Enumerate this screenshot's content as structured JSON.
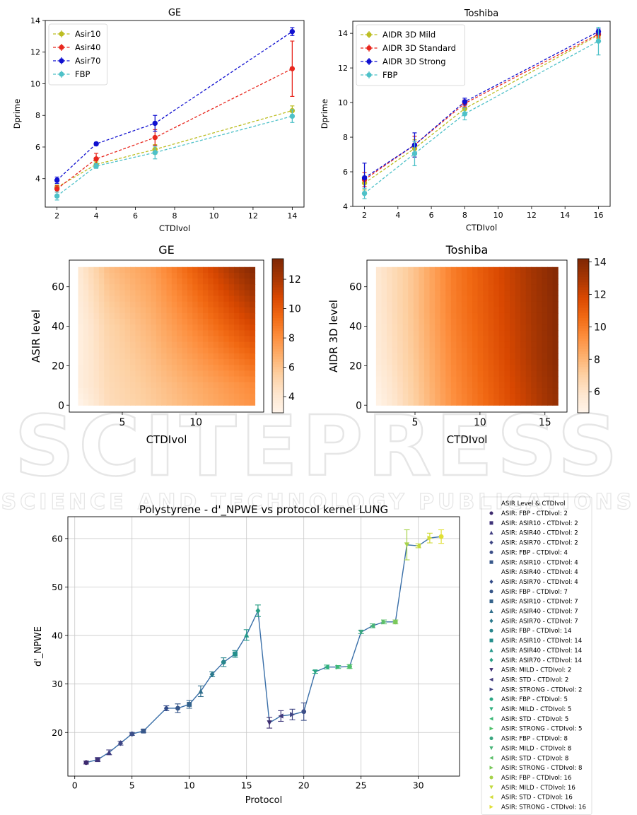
{
  "chart_data": [
    {
      "id": "ge_line",
      "type": "line",
      "title": "GE",
      "xlabel": "CTDIvol",
      "ylabel": "Dprime",
      "xlim": [
        1.4,
        14.6
      ],
      "ylim": [
        2.2,
        14.0
      ],
      "xticks": [
        2,
        4,
        6,
        8,
        10,
        12,
        14
      ],
      "yticks": [
        4,
        6,
        8,
        10,
        12,
        14
      ],
      "legend_position": "top-left",
      "x": [
        2,
        4,
        7,
        14
      ],
      "series": [
        {
          "name": "Asir10",
          "color": "#bcbd22",
          "values": [
            3.45,
            4.9,
            5.85,
            8.3
          ],
          "errors": [
            0.15,
            0.2,
            0.3,
            0.3
          ]
        },
        {
          "name": "Asir40",
          "color": "#e8271e",
          "values": [
            3.35,
            5.25,
            6.6,
            10.95
          ],
          "errors": [
            0.2,
            0.35,
            0.5,
            1.75
          ]
        },
        {
          "name": "Asir70",
          "color": "#1010d0",
          "values": [
            3.9,
            6.2,
            7.5,
            13.3
          ],
          "errors": [
            0.2,
            0.1,
            0.5,
            0.25
          ]
        },
        {
          "name": "FBP",
          "color": "#4ec1c8",
          "values": [
            2.9,
            4.8,
            5.65,
            7.95
          ],
          "errors": [
            0.25,
            0.15,
            0.4,
            0.4
          ]
        }
      ]
    },
    {
      "id": "toshiba_line",
      "type": "line",
      "title": "Toshiba",
      "xlabel": "CTDIvol",
      "ylabel": "Dprime",
      "xlim": [
        1.3,
        16.7
      ],
      "ylim": [
        4.0,
        14.7
      ],
      "xticks": [
        2,
        4,
        6,
        8,
        10,
        12,
        14,
        16
      ],
      "yticks": [
        4,
        6,
        8,
        10,
        12,
        14
      ],
      "legend_position": "top-left",
      "x": [
        2,
        5,
        8,
        16
      ],
      "series": [
        {
          "name": "AIDR 3D Mild",
          "color": "#bcbd22",
          "values": [
            5.35,
            7.35,
            9.65,
            13.9
          ],
          "errors": [
            0.4,
            0.5,
            0.3,
            0.2
          ]
        },
        {
          "name": "AIDR 3D Standard",
          "color": "#e8271e",
          "values": [
            5.55,
            7.55,
            9.95,
            13.95
          ],
          "errors": [
            0.4,
            0.5,
            0.2,
            0.2
          ]
        },
        {
          "name": "AIDR 3D Strong",
          "color": "#1010d0",
          "values": [
            5.65,
            7.55,
            10.05,
            14.1
          ],
          "errors": [
            0.85,
            0.7,
            0.2,
            0.15
          ]
        },
        {
          "name": "FBP",
          "color": "#4ec1c8",
          "values": [
            4.75,
            7.05,
            9.35,
            13.55
          ],
          "errors": [
            0.3,
            0.7,
            0.35,
            0.8
          ]
        }
      ]
    },
    {
      "id": "ge_heatmap",
      "type": "heatmap",
      "title": "GE",
      "xlabel": "CTDIvol",
      "ylabel": "ASIR level",
      "xlim": [
        1.4,
        14.6
      ],
      "ylim": [
        -3.5,
        73.5
      ],
      "data_x": [
        2,
        14
      ],
      "data_y": [
        0,
        70
      ],
      "xticks": [
        5,
        10
      ],
      "yticks": [
        0,
        20,
        40,
        60
      ],
      "colorbar_ticks": [
        4,
        6,
        8,
        10,
        12
      ],
      "colorbar_range": [
        2.9,
        13.4
      ],
      "colormap": "Oranges",
      "grid_x": [
        2,
        4,
        7,
        14
      ],
      "grid_y": [
        0,
        10,
        40,
        70
      ],
      "values": [
        [
          2.9,
          4.8,
          5.65,
          7.95
        ],
        [
          3.45,
          4.9,
          5.85,
          8.3
        ],
        [
          3.35,
          5.25,
          6.6,
          10.95
        ],
        [
          3.9,
          6.2,
          7.5,
          13.3
        ]
      ]
    },
    {
      "id": "toshiba_heatmap",
      "type": "heatmap",
      "title": "Toshiba",
      "xlabel": "CTDIvol",
      "ylabel": "AIDR 3D level",
      "xlim": [
        1.3,
        16.7
      ],
      "ylim": [
        -3.5,
        73.5
      ],
      "data_x": [
        2,
        16
      ],
      "data_y": [
        0,
        70
      ],
      "xticks": [
        5,
        10,
        15
      ],
      "yticks": [
        0,
        20,
        40,
        60
      ],
      "colorbar_ticks": [
        6,
        8,
        10,
        12,
        14
      ],
      "colorbar_range": [
        4.7,
        14.2
      ],
      "colormap": "Oranges",
      "grid_x": [
        2,
        5,
        8,
        16
      ],
      "grid_y": [
        0,
        23,
        47,
        70
      ],
      "values": [
        [
          4.75,
          7.05,
          9.35,
          13.55
        ],
        [
          5.35,
          7.35,
          9.65,
          13.9
        ],
        [
          5.55,
          7.55,
          9.95,
          13.95
        ],
        [
          5.65,
          7.55,
          10.05,
          14.1
        ]
      ]
    },
    {
      "id": "polystyrene",
      "type": "line",
      "title": "Polystyrene - d'_NPWE vs protocol kernel LUNG",
      "xlabel": "Protocol",
      "ylabel": "d'_NPWE",
      "xlim": [
        -0.6,
        33.6
      ],
      "ylim": [
        11.0,
        64.5
      ],
      "xticks": [
        0,
        5,
        10,
        15,
        20,
        25,
        30
      ],
      "yticks": [
        20,
        30,
        40,
        50,
        60
      ],
      "grid": true,
      "line_color": "#3a6fa8",
      "x": [
        1,
        2,
        3,
        4,
        5,
        6,
        8,
        9,
        10,
        11,
        12,
        13,
        14,
        15,
        16,
        17,
        18,
        19,
        20,
        21,
        22,
        23,
        24,
        25,
        26,
        27,
        28,
        29,
        30,
        31,
        32
      ],
      "values": [
        13.8,
        14.4,
        15.9,
        17.8,
        19.7,
        20.3,
        25.0,
        25.0,
        25.8,
        28.5,
        32.0,
        34.5,
        36.2,
        40.1,
        45.1,
        22.0,
        23.4,
        23.7,
        24.3,
        32.5,
        33.5,
        33.5,
        33.6,
        40.7,
        42.0,
        42.8,
        42.8,
        58.7,
        58.5,
        60.1,
        60.4
      ],
      "errors": [
        0.3,
        0.4,
        0.5,
        0.4,
        0.3,
        0.3,
        0.5,
        0.9,
        0.8,
        1.1,
        0.5,
        0.9,
        0.7,
        1.1,
        1.2,
        1.1,
        1.1,
        1.1,
        1.8,
        0.3,
        0.4,
        0.3,
        0.4,
        0.3,
        0.4,
        0.4,
        0.4,
        3.1,
        0.4,
        1.0,
        1.4
      ],
      "point_colors": [
        "#3d2a6e",
        "#3f3379",
        "#403d80",
        "#3f4685",
        "#3c4f89",
        "#39588b",
        "#324b88",
        "#355588",
        "#34628b",
        "#306e8c",
        "#2b7a8d",
        "#29868d",
        "#258f8c",
        "#24978a",
        "#2a9f86",
        "#3b2c6f",
        "#403a7d",
        "#404583",
        "#3d4f88",
        "#2aa784",
        "#2eb07e",
        "#3bb877",
        "#4fc06a",
        "#3aa680",
        "#47b477",
        "#5cbf6a",
        "#7ac85a",
        "#a6d24a",
        "#c2d93e",
        "#d2dc39",
        "#e0df35"
      ],
      "legend": {
        "title": "ASIR Level & CTDIvol",
        "entries": [
          {
            "label": "ASIR: FBP - CTDIvol: 2",
            "color": "#3d2a6e",
            "marker": "o"
          },
          {
            "label": "ASIR: ASIR10 - CTDIvol: 2",
            "color": "#3f3379",
            "marker": "s"
          },
          {
            "label": "ASIR: ASIR40 - CTDIvol: 2",
            "color": "#403d80",
            "marker": "^"
          },
          {
            "label": "ASIR: ASIR70 - CTDIvol: 2",
            "color": "#3f4685",
            "marker": "D"
          },
          {
            "label": "ASIR: FBP - CTDIvol: 4",
            "color": "#3c4f89",
            "marker": "o"
          },
          {
            "label": "ASIR: ASIR10 - CTDIvol: 4",
            "color": "#39588b",
            "marker": "s"
          },
          {
            "label": "ASIR: ASIR40 - CTDIvol: 4",
            "color": "#ffffff",
            "marker": "^"
          },
          {
            "label": "ASIR: ASIR70 - CTDIvol: 4",
            "color": "#324b88",
            "marker": "D"
          },
          {
            "label": "ASIR: FBP - CTDIvol: 7",
            "color": "#355588",
            "marker": "o"
          },
          {
            "label": "ASIR: ASIR10 - CTDIvol: 7",
            "color": "#34628b",
            "marker": "s"
          },
          {
            "label": "ASIR: ASIR40 - CTDIvol: 7",
            "color": "#306e8c",
            "marker": "^"
          },
          {
            "label": "ASIR: ASIR70 - CTDIvol: 7",
            "color": "#2b7a8d",
            "marker": "D"
          },
          {
            "label": "ASIR: FBP - CTDIvol: 14",
            "color": "#29868d",
            "marker": "o"
          },
          {
            "label": "ASIR: ASIR10 - CTDIvol: 14",
            "color": "#258f8c",
            "marker": "s"
          },
          {
            "label": "ASIR: ASIR40 - CTDIvol: 14",
            "color": "#24978a",
            "marker": "^"
          },
          {
            "label": "ASIR: ASIR70 - CTDIvol: 14",
            "color": "#2a9f86",
            "marker": "D"
          },
          {
            "label": "ASIR: MILD - CTDIvol: 2",
            "color": "#3b2c6f",
            "marker": "v"
          },
          {
            "label": "ASIR: STD - CTDIvol: 2",
            "color": "#403a7d",
            "marker": "<"
          },
          {
            "label": "ASIR: STRONG - CTDIvol: 2",
            "color": "#404583",
            "marker": ">"
          },
          {
            "label": "ASIR: FBP - CTDIvol: 5",
            "color": "#2aa784",
            "marker": "o"
          },
          {
            "label": "ASIR: MILD - CTDIvol: 5",
            "color": "#2eb07e",
            "marker": "v"
          },
          {
            "label": "ASIR: STD - CTDIvol: 5",
            "color": "#3bb877",
            "marker": "<"
          },
          {
            "label": "ASIR: STRONG - CTDIvol: 5",
            "color": "#4fc06a",
            "marker": ">"
          },
          {
            "label": "ASIR: FBP - CTDIvol: 8",
            "color": "#3aa680",
            "marker": "o"
          },
          {
            "label": "ASIR: MILD - CTDIvol: 8",
            "color": "#47b477",
            "marker": "v"
          },
          {
            "label": "ASIR: STD - CTDIvol: 8",
            "color": "#5cbf6a",
            "marker": "<"
          },
          {
            "label": "ASIR: STRONG - CTDIvol: 8",
            "color": "#7ac85a",
            "marker": ">"
          },
          {
            "label": "ASIR: FBP - CTDIvol: 16",
            "color": "#a6d24a",
            "marker": "o"
          },
          {
            "label": "ASIR: MILD - CTDIvol: 16",
            "color": "#c2d93e",
            "marker": "v"
          },
          {
            "label": "ASIR: STD - CTDIvol: 16",
            "color": "#d2dc39",
            "marker": "<"
          },
          {
            "label": "ASIR: STRONG - CTDIvol: 16",
            "color": "#e0df35",
            "marker": ">"
          }
        ]
      }
    }
  ],
  "watermark": {
    "brand": "SCITEPRESS",
    "tagline": "SCIENCE AND TECHNOLOGY PUBLICATIONS"
  }
}
